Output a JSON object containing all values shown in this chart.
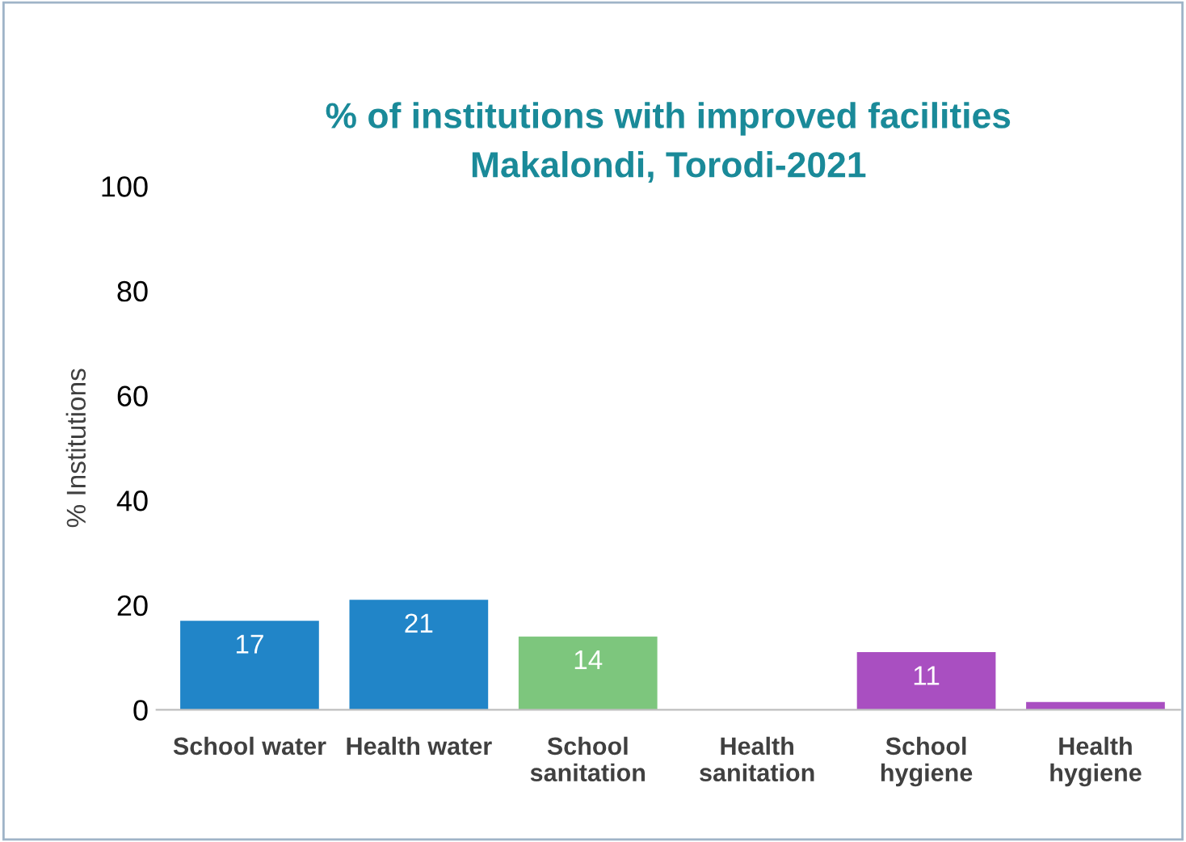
{
  "chart_data": {
    "type": "bar",
    "title": "% of institutions with improved facilities\nMakalondi, Torodi-2021",
    "ylabel": "% Institutions",
    "categories": [
      "School water",
      "Health water",
      "School sanitation",
      "Health sanitation",
      "School hygiene",
      "Health hygiene"
    ],
    "values": [
      17,
      21,
      14,
      0,
      11,
      1.5
    ],
    "value_labels": [
      "17",
      "21",
      "14",
      null,
      "11",
      null
    ],
    "colors": [
      "#2185c8",
      "#2185c8",
      "#7dc67d",
      "#7dc67d",
      "#a94fc1",
      "#a94fc1"
    ],
    "ylim": [
      0,
      100
    ],
    "yticks": [
      0,
      20,
      40,
      60,
      80,
      100
    ],
    "grid": false,
    "legend": false
  }
}
